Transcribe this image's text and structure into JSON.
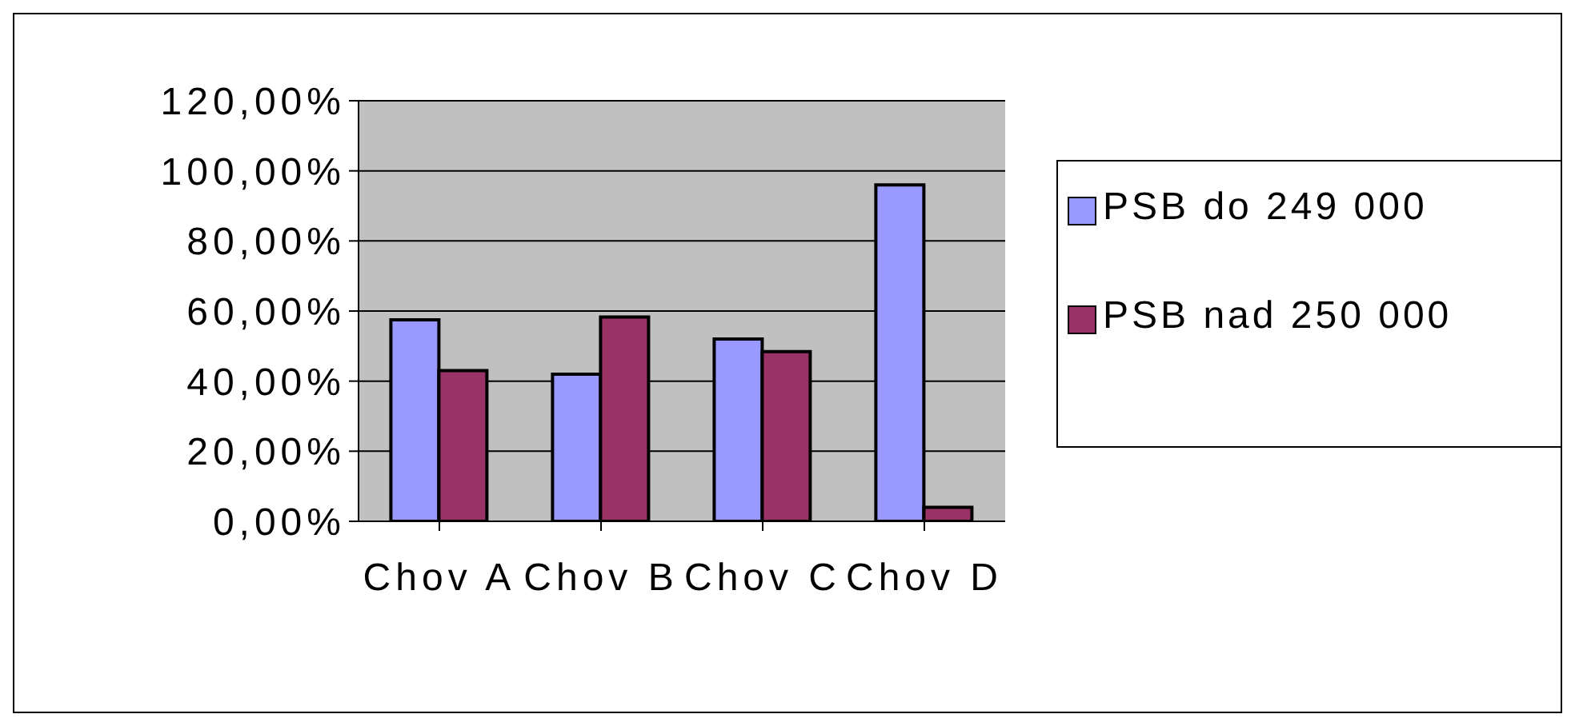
{
  "chart_data": {
    "type": "bar",
    "categories": [
      "Chov A",
      "Chov B",
      "Chov C",
      "Chov D"
    ],
    "series": [
      {
        "name": "PSB do 249 000",
        "color": "#9999ff",
        "values": [
          57.5,
          42,
          52,
          96
        ]
      },
      {
        "name": "PSB nad 250 000",
        "color": "#993366",
        "values": [
          43,
          58.3,
          48.4,
          4
        ]
      }
    ],
    "ylim": [
      0,
      120
    ],
    "yticks": [
      {
        "value": 0,
        "label": "0,00%"
      },
      {
        "value": 20,
        "label": "20,00%"
      },
      {
        "value": 40,
        "label": "40,00%"
      },
      {
        "value": 60,
        "label": "60,00%"
      },
      {
        "value": 80,
        "label": "80,00%"
      },
      {
        "value": 100,
        "label": "100,00%"
      },
      {
        "value": 120,
        "label": "120,00%"
      }
    ],
    "grid": "y",
    "legend": "right"
  }
}
